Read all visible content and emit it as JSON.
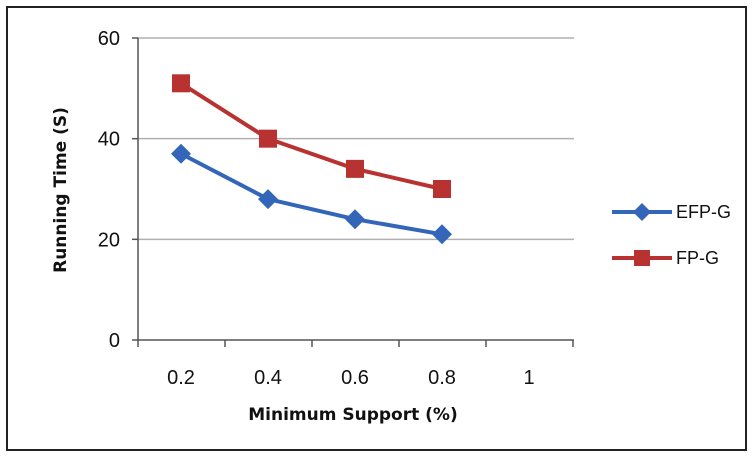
{
  "chart_data": {
    "type": "line",
    "title": "",
    "xlabel": "Minimum Support (%)",
    "ylabel": "Running Time (S)",
    "x_ticks": [
      "0.2",
      "0.4",
      "0.6",
      "0.8",
      "1"
    ],
    "ylim": [
      0,
      60
    ],
    "y_ticks": [
      "0",
      "20",
      "40",
      "60"
    ],
    "grid": true,
    "legend_position": "right",
    "series": [
      {
        "name": "EFP-G",
        "color": "#3366b8",
        "marker": "diamond",
        "x": [
          0.2,
          0.4,
          0.6,
          0.8
        ],
        "values": [
          37,
          28,
          24,
          21
        ]
      },
      {
        "name": "FP-G",
        "color": "#b83232",
        "marker": "square",
        "x": [
          0.2,
          0.4,
          0.6,
          0.8
        ],
        "values": [
          51,
          40,
          34,
          30
        ]
      }
    ]
  }
}
